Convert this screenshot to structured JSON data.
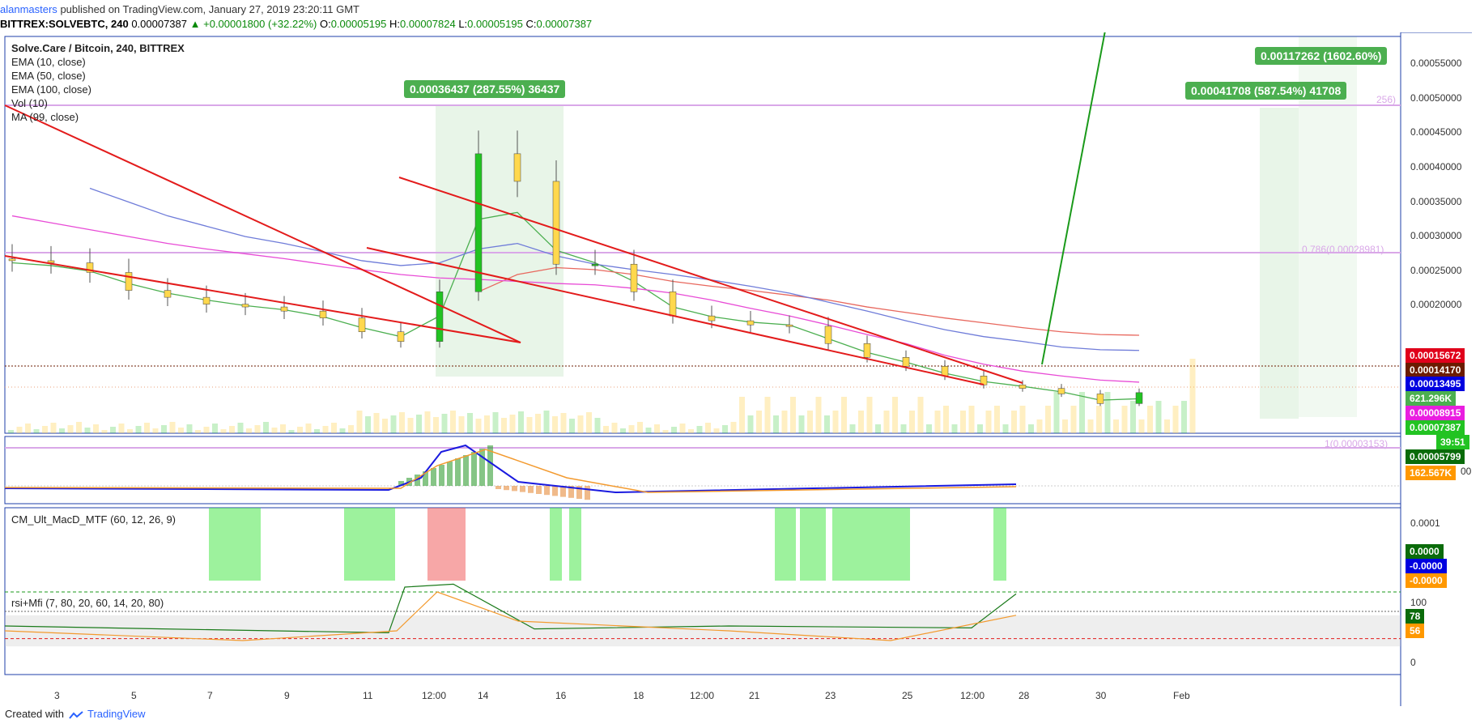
{
  "header": {
    "user": "alanmasters",
    "published_text": "published on TradingView.com, January 27, 2019 23:20:11 GMT",
    "symbol": "BITTREX:SOLVEBTC, 240",
    "last": "0.00007387",
    "change": "▲ +0.00001800 (+32.22%)",
    "o_label": "O:",
    "o_value": "0.00005195",
    "h_label": "H:",
    "h_value": "0.00007824",
    "l_label": "L:",
    "l_value": "0.00005195",
    "c_label": "C:",
    "c_value": "0.00007387"
  },
  "legend": {
    "title": "Solve.Care / Bitcoin, 240, BITTREX",
    "ema10": "EMA (10, close)",
    "ema50": "EMA (50, close)",
    "ema100": "EMA (100, close)",
    "vol": "Vol (10)",
    "ma": "MA (99, close)"
  },
  "annotations": {
    "measure1": "0.00036437 (287.55%) 36437",
    "measure2": "0.00041708 (587.54%) 41708",
    "measure3": "0.00117262 (1602.60%)",
    "fib_0786": "0.786(0.00028981)",
    "fib_1": "1(0.00003153)",
    "fib_top_partial": "256)"
  },
  "price_axis": {
    "ticks": [
      "0.00055000",
      "0.00050000",
      "0.00045000",
      "0.00040000",
      "0.00035000",
      "0.00030000",
      "0.00025000",
      "0.00020000"
    ],
    "tick_values": [
      0.00055,
      0.0005,
      0.00045,
      0.0004,
      0.00035,
      0.0003,
      0.00025,
      0.0002
    ],
    "partial_tick": "00"
  },
  "price_labels": [
    {
      "text": "0.00015672",
      "color": "#e0001b"
    },
    {
      "text": "0.00014170",
      "color": "#6b1b00"
    },
    {
      "text": "0.00013495",
      "color": "#0000e0"
    },
    {
      "text": "621.296K",
      "color": "#4caf50"
    },
    {
      "text": "0.00008915",
      "color": "#e91ee0"
    },
    {
      "text": "0.00007387",
      "color": "#22c322"
    },
    {
      "text": "39:51",
      "color": "#22c322"
    },
    {
      "text": "0.00005799",
      "color": "#0a6b0a"
    },
    {
      "text": "162.567K",
      "color": "#ff9800"
    }
  ],
  "macd": {
    "title": "CM_Ult_MacD_MTF (60, 12, 26, 9)",
    "axis_tick": "0.0001",
    "labels": [
      {
        "text": "0.0000",
        "color": "#0a6b0a"
      },
      {
        "text": "-0.0000",
        "color": "#0000e0"
      },
      {
        "text": "-0.0000",
        "color": "#ff9800"
      }
    ]
  },
  "rsi": {
    "title": "rsi+Mfi (7, 80, 20, 60, 14, 20, 80)",
    "axis_ticks": [
      "100",
      "0"
    ],
    "labels": [
      {
        "text": "78",
        "color": "#0a6b0a"
      },
      {
        "text": "56",
        "color": "#ff9800"
      }
    ]
  },
  "time_axis": [
    "3",
    "5",
    "7",
    "9",
    "11",
    "12:00",
    "14",
    "16",
    "18",
    "12:00",
    "21",
    "23",
    "25",
    "12:00",
    "28",
    "30",
    "Feb"
  ],
  "footer": {
    "created": "Created with",
    "brand": "TradingView"
  },
  "colors": {
    "up": "#22c322",
    "down": "#ffd84d",
    "trend": "#e31b1b",
    "ema10": "#4caf50",
    "ema50": "#e8685e",
    "ema100": "#6f7cd9",
    "ma99": "#e84bd6"
  },
  "chart_data": {
    "type": "candlestick",
    "title": "Solve.Care / Bitcoin, 240, BITTREX",
    "x": [
      "Jan 2",
      "Jan 3",
      "Jan 4",
      "Jan 5",
      "Jan 6",
      "Jan 7",
      "Jan 8",
      "Jan 9",
      "Jan 10",
      "Jan 11",
      "Jan 11 18:00",
      "Jan 12",
      "Jan 12 12:00",
      "Jan 13",
      "Jan 14",
      "Jan 15",
      "Jan 16",
      "Jan 17",
      "Jan 18",
      "Jan 19",
      "Jan 19 12:00",
      "Jan 20",
      "Jan 21",
      "Jan 22",
      "Jan 23",
      "Jan 24",
      "Jan 25",
      "Jan 26",
      "Jan 27",
      "Jan 27 20:00"
    ],
    "close": [
      0.000265,
      0.000262,
      0.000248,
      0.000222,
      0.000212,
      0.000202,
      0.000198,
      0.000192,
      0.000182,
      0.000162,
      0.000148,
      0.00022,
      0.00042,
      0.00038,
      0.00026,
      0.00026,
      0.00022,
      0.000185,
      0.000178,
      0.000172,
      0.00017,
      0.000145,
      0.000125,
      0.000112,
      9.8e-05,
      8.5e-05,
      8e-05,
      7.2e-05,
      5.8e-05,
      7.387e-05
    ],
    "series": [
      {
        "name": "EMA (10, close)",
        "values": [
          0.000262,
          0.000258,
          0.00025,
          0.000232,
          0.000218,
          0.000208,
          0.0002,
          0.000194,
          0.000184,
          0.000168,
          0.000155,
          0.000185,
          0.000325,
          0.000335,
          0.00028,
          0.000262,
          0.000235,
          0.000198,
          0.000184,
          0.000176,
          0.000172,
          0.000152,
          0.000132,
          0.000118,
          0.000102,
          9e-05,
          8.3e-05,
          7.5e-05,
          6.3e-05,
          6.5e-05
        ]
      },
      {
        "name": "EMA (50, close)",
        "values": [
          null,
          null,
          null,
          null,
          null,
          null,
          null,
          null,
          null,
          null,
          null,
          null,
          0.00022,
          0.000245,
          0.000255,
          0.000252,
          0.000245,
          0.000235,
          0.000228,
          0.000222,
          0.000215,
          0.000208,
          0.000198,
          0.00019,
          0.000182,
          0.000175,
          0.000168,
          0.000162,
          0.000158,
          0.000157
        ]
      },
      {
        "name": "EMA (100, close)",
        "values": [
          null,
          null,
          0.00037,
          0.00035,
          0.00033,
          0.000315,
          0.0003,
          0.00029,
          0.000278,
          0.000265,
          0.000258,
          0.000262,
          0.000282,
          0.00029,
          0.000272,
          0.00026,
          0.000252,
          0.000245,
          0.000237,
          0.000228,
          0.000218,
          0.000205,
          0.000192,
          0.000178,
          0.000165,
          0.000155,
          0.000148,
          0.00014,
          0.000136,
          0.000135
        ]
      },
      {
        "name": "MA (99, close)",
        "values": [
          0.00033,
          0.00032,
          0.00031,
          0.0003,
          0.00029,
          0.000282,
          0.000275,
          0.000268,
          0.00026,
          0.000252,
          0.000245,
          0.00024,
          0.000238,
          0.000235,
          0.000232,
          0.00023,
          0.000225,
          0.000218,
          0.000208,
          0.000196,
          0.000185,
          0.000172,
          0.000158,
          0.000145,
          0.000128,
          0.000115,
          0.000105,
          9.8e-05,
          9.2e-05,
          8.9e-05
        ]
      }
    ],
    "ylim": [
      1.5e-05,
      0.00059
    ],
    "y_scale": "linear",
    "grid": false,
    "legend": "top-left"
  }
}
